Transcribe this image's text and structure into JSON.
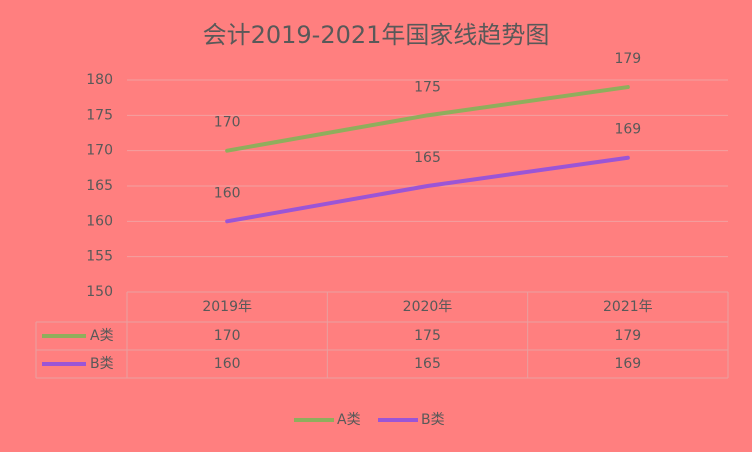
{
  "chart_data": {
    "type": "line",
    "title": "会计2019-2021年国家线趋势图",
    "categories": [
      "2019年",
      "2020年",
      "2021年"
    ],
    "series": [
      {
        "name": "A类",
        "color": "#8fae5c",
        "values": [
          170,
          175,
          179
        ]
      },
      {
        "name": "B类",
        "color": "#9b55d6",
        "values": [
          160,
          165,
          169
        ]
      }
    ],
    "ylim": [
      150,
      180
    ],
    "yticks": [
      150,
      155,
      160,
      165,
      170,
      175,
      180
    ],
    "grid": true,
    "data_labels": true,
    "data_table": true,
    "legend": "bottom"
  }
}
